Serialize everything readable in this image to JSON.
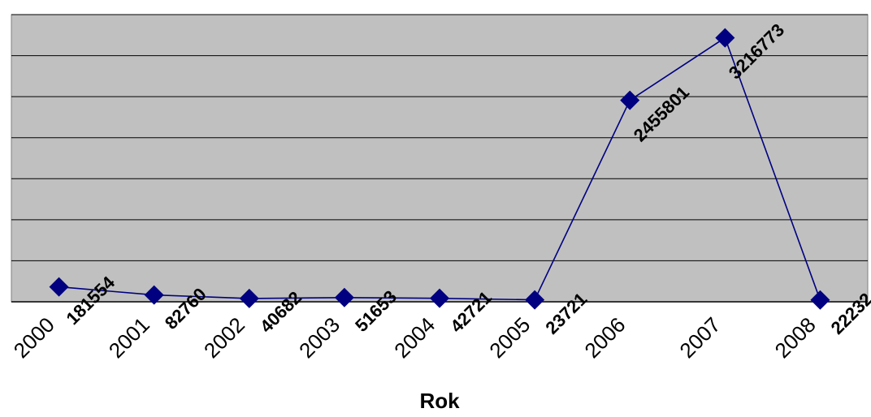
{
  "chart_data": {
    "type": "line",
    "categories": [
      "2000",
      "2001",
      "2002",
      "2003",
      "2004",
      "2005",
      "2006",
      "2007",
      "2008"
    ],
    "series": [
      {
        "values": [
          181554,
          82760,
          40682,
          51653,
          42721,
          23721,
          2455801,
          3216773,
          22232
        ],
        "data_labels": [
          "181554",
          "82760",
          "40682",
          "51653",
          "42721",
          "23721",
          "2455801",
          "3216773",
          "22232"
        ]
      }
    ],
    "title": "",
    "xlabel": "Rok",
    "ylabel": "",
    "ylim": [
      0,
      3500000
    ],
    "y_gridline_step": 500000,
    "y_tick_labels_shown": false,
    "grid": true,
    "legend": "none",
    "colors": {
      "plot_background": "#c0c0c0",
      "line": "#000080",
      "marker": "#000080",
      "gridline": "#000000"
    },
    "marker": "diamond"
  }
}
